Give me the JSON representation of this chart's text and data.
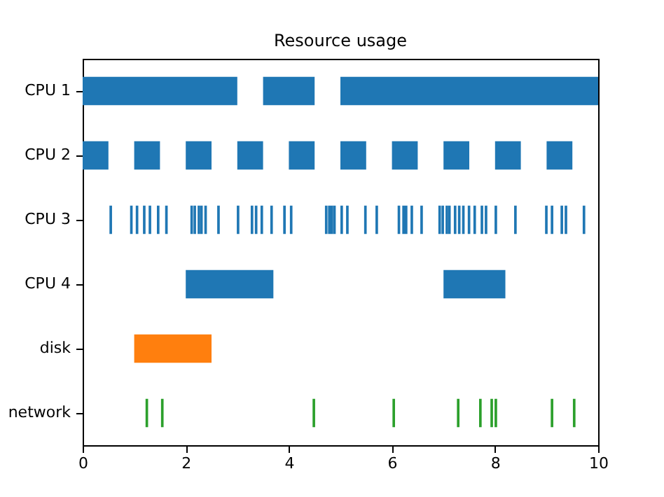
{
  "chart_data": {
    "type": "bar",
    "orientation": "horizontal",
    "title": "Resource usage",
    "categories": [
      "CPU 1",
      "CPU 2",
      "CPU 3",
      "CPU 4",
      "disk",
      "network"
    ],
    "xlim": [
      0,
      10
    ],
    "xticks": [
      0,
      2,
      4,
      6,
      8,
      10
    ],
    "grid": false,
    "series": [
      {
        "color": "#1f77b4",
        "x": [
          "CPU 1",
          "CPU 1",
          "CPU 1"
        ],
        "base": [
          0,
          3.5,
          5
        ],
        "values": [
          3,
          1,
          5
        ]
      },
      {
        "color": "#1f77b4",
        "x": [
          "CPU 2",
          "CPU 2",
          "CPU 2",
          "CPU 2",
          "CPU 2",
          "CPU 2",
          "CPU 2",
          "CPU 2",
          "CPU 2",
          "CPU 2"
        ],
        "base": [
          0,
          1,
          2,
          3,
          4,
          5,
          6,
          7,
          8,
          9
        ],
        "values": [
          0.5,
          0.5,
          0.5,
          0.5,
          0.5,
          0.5,
          0.5,
          0.5,
          0.5,
          0.5
        ]
      },
      {
        "color": "#1f77b4",
        "x": [
          "CPU 3",
          "CPU 3",
          "CPU 3",
          "CPU 3",
          "CPU 3",
          "CPU 3",
          "CPU 3",
          "CPU 3",
          "CPU 3",
          "CPU 3",
          "CPU 3",
          "CPU 3",
          "CPU 3",
          "CPU 3",
          "CPU 3",
          "CPU 3",
          "CPU 3",
          "CPU 3",
          "CPU 3",
          "CPU 3",
          "CPU 3",
          "CPU 3",
          "CPU 3",
          "CPU 3",
          "CPU 3",
          "CPU 3",
          "CPU 3",
          "CPU 3",
          "CPU 3",
          "CPU 3",
          "CPU 3",
          "CPU 3",
          "CPU 3",
          "CPU 3",
          "CPU 3",
          "CPU 3",
          "CPU 3",
          "CPU 3",
          "CPU 3",
          "CPU 3",
          "CPU 3",
          "CPU 3",
          "CPU 3",
          "CPU 3",
          "CPU 3",
          "CPU 3",
          "CPU 3",
          "CPU 3",
          "CPU 3",
          "CPU 3",
          "CPU 3"
        ],
        "base": [
          0.52,
          0.92,
          1.03,
          1.17,
          1.28,
          1.44,
          1.6,
          2.09,
          2.15,
          2.23,
          2.28,
          2.36,
          2.61,
          2.99,
          3.26,
          3.34,
          3.45,
          3.64,
          3.89,
          4.02,
          4.7,
          4.76,
          4.81,
          4.86,
          5.0,
          5.11,
          5.46,
          5.68,
          6.11,
          6.2,
          6.25,
          6.36,
          6.55,
          6.9,
          6.96,
          7.04,
          7.09,
          7.2,
          7.28,
          7.36,
          7.47,
          7.58,
          7.72,
          7.8,
          7.99,
          8.37,
          8.97,
          9.08,
          9.27,
          9.35,
          9.7
        ],
        "values": [
          0.05,
          0.05,
          0.05,
          0.05,
          0.05,
          0.05,
          0.05,
          0.05,
          0.05,
          0.05,
          0.05,
          0.05,
          0.05,
          0.05,
          0.05,
          0.05,
          0.05,
          0.05,
          0.05,
          0.05,
          0.05,
          0.05,
          0.05,
          0.05,
          0.05,
          0.05,
          0.05,
          0.05,
          0.05,
          0.05,
          0.05,
          0.05,
          0.05,
          0.05,
          0.05,
          0.05,
          0.05,
          0.05,
          0.05,
          0.05,
          0.05,
          0.05,
          0.05,
          0.05,
          0.05,
          0.05,
          0.05,
          0.05,
          0.05,
          0.05,
          0.05
        ]
      },
      {
        "color": "#1f77b4",
        "x": [
          "CPU 4",
          "CPU 4"
        ],
        "base": [
          2,
          7
        ],
        "values": [
          1.7,
          1.2
        ]
      },
      {
        "color": "#ff7f0e",
        "x": [
          "disk"
        ],
        "base": [
          1
        ],
        "values": [
          1.5
        ]
      },
      {
        "color": "#2ca02c",
        "x": [
          "network",
          "network",
          "network",
          "network",
          "network",
          "network",
          "network",
          "network",
          "network",
          "network"
        ],
        "base": [
          1.22,
          1.52,
          4.46,
          6.01,
          7.26,
          7.69,
          7.91,
          7.99,
          9.08,
          9.51
        ],
        "values": [
          0.05,
          0.05,
          0.05,
          0.05,
          0.05,
          0.05,
          0.05,
          0.05,
          0.05,
          0.05
        ]
      }
    ]
  }
}
